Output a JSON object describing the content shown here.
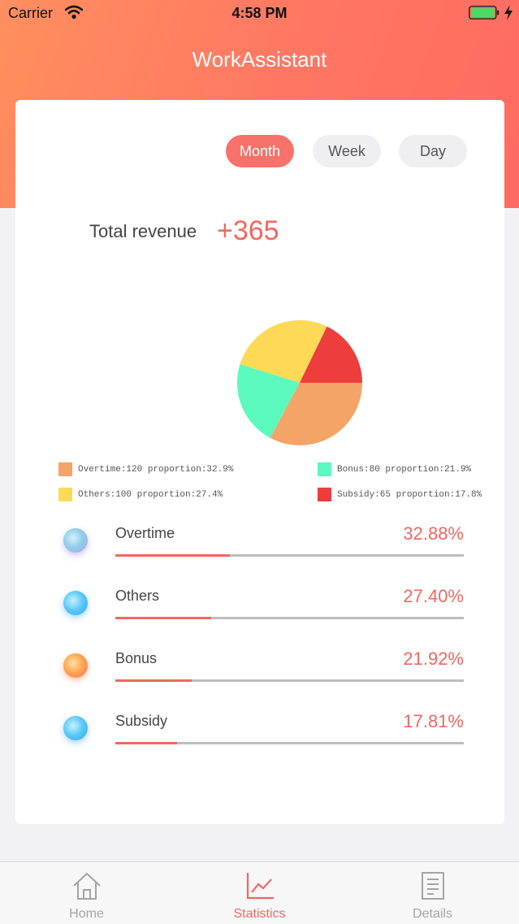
{
  "status_bar": {
    "carrier": "Carrier",
    "time": "4:58 PM"
  },
  "header": {
    "title": "WorkAssistant"
  },
  "period_tabs": [
    {
      "label": "Month",
      "active": true
    },
    {
      "label": "Week",
      "active": false
    },
    {
      "label": "Day",
      "active": false
    }
  ],
  "summary": {
    "label": "Total revenue",
    "value": "+365"
  },
  "chart_data": {
    "type": "pie",
    "slices": [
      {
        "name": "Overtime",
        "value": 120,
        "color": "#f4a466"
      },
      {
        "name": "Bonus",
        "value": 80,
        "color": "#5cf9bf"
      },
      {
        "name": "Others",
        "value": 100,
        "color": "#fdd955"
      },
      {
        "name": "Subsidy",
        "value": 65,
        "color": "#ee3d3d"
      }
    ],
    "legend": [
      {
        "text": "Overtime:120 proportion:32.9%",
        "color": "#f4a466"
      },
      {
        "text": "Bonus:80 proportion:21.9%",
        "color": "#5cf9bf"
      },
      {
        "text": "Others:100 proportion:27.4%",
        "color": "#fdd955"
      },
      {
        "text": "Subsidy:65 proportion:17.8%",
        "color": "#ee3d3d"
      }
    ]
  },
  "breakdown": [
    {
      "name": "Overtime",
      "percent": "32.88%",
      "fraction": 0.3288,
      "icon": "overtime-icon"
    },
    {
      "name": "Others",
      "percent": "27.40%",
      "fraction": 0.274,
      "icon": "others-icon"
    },
    {
      "name": "Bonus",
      "percent": "21.92%",
      "fraction": 0.2192,
      "icon": "bonus-icon"
    },
    {
      "name": "Subsidy",
      "percent": "17.81%",
      "fraction": 0.1781,
      "icon": "subsidy-icon"
    }
  ],
  "tabbar": [
    {
      "label": "Home",
      "icon": "home-icon",
      "active": false
    },
    {
      "label": "Statistics",
      "icon": "chart-icon",
      "active": true
    },
    {
      "label": "Details",
      "icon": "list-icon",
      "active": false
    }
  ],
  "colors": {
    "accent": "#f2675f",
    "track": "#bdbdbd"
  }
}
